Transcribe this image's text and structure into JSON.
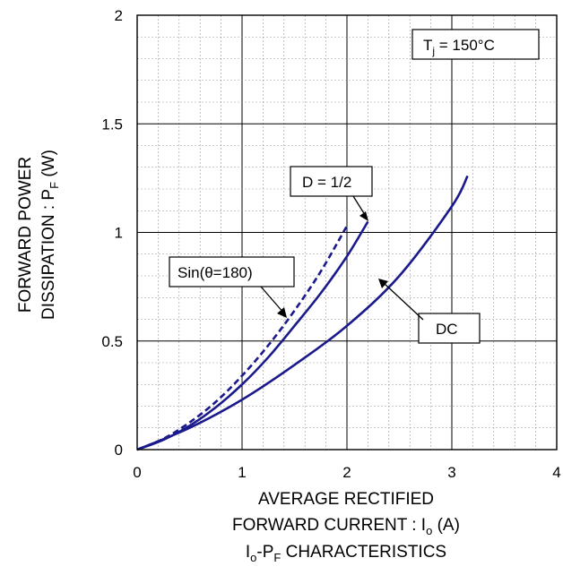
{
  "chart_data": {
    "type": "line",
    "title": "",
    "caption": {
      "main": "I",
      "sub_o": "o",
      "dash": "-P",
      "sub_f": "F",
      "rest": " CHARACTERISTICS"
    },
    "xlabel": {
      "line1": "AVERAGE RECTIFIED",
      "line2_main": "FORWARD CURRENT : I",
      "line2_sub": "o",
      "line2_unit": " (A)"
    },
    "ylabel": {
      "line1": "FORWARD POWER",
      "line2_main": "DISSIPATION : P",
      "line2_sub": "F",
      "line2_unit": " (W)"
    },
    "xlim": [
      0,
      4
    ],
    "ylim": [
      0,
      2
    ],
    "x_ticks": [
      "0",
      "1",
      "2",
      "3",
      "4"
    ],
    "y_ticks": [
      "0",
      "0.5",
      "1",
      "1.5",
      "2"
    ],
    "grid": true,
    "annotation_tj": {
      "main": "T",
      "sub": "j",
      "rest": " = 150°C"
    },
    "color": "#1a1a8c",
    "series": [
      {
        "label": "D = 1/2",
        "style": "solid",
        "x": [
          0,
          0.25,
          0.5,
          0.75,
          1.0,
          1.25,
          1.5,
          1.75,
          2.0,
          2.2
        ],
        "y": [
          0,
          0.045,
          0.11,
          0.195,
          0.3,
          0.425,
          0.57,
          0.72,
          0.89,
          1.05
        ]
      },
      {
        "label": "Sin(θ=180)",
        "style": "dashed",
        "x": [
          0,
          0.25,
          0.5,
          0.75,
          1.0,
          1.25,
          1.5,
          1.75,
          2.0
        ],
        "y": [
          0,
          0.05,
          0.125,
          0.22,
          0.34,
          0.48,
          0.64,
          0.82,
          1.03
        ]
      },
      {
        "label": "DC",
        "style": "solid",
        "x": [
          0,
          0.5,
          1.0,
          1.5,
          2.0,
          2.5,
          3.0,
          3.15
        ],
        "y": [
          0,
          0.1,
          0.23,
          0.39,
          0.57,
          0.8,
          1.12,
          1.26
        ]
      }
    ]
  }
}
